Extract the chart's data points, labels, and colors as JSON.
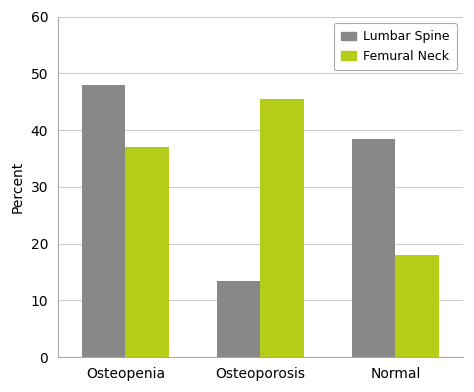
{
  "categories": [
    "Osteopenia",
    "Osteoporosis",
    "Normal"
  ],
  "lumbar_spine": [
    48,
    13.5,
    38.5
  ],
  "femural_neck": [
    37,
    45.5,
    18
  ],
  "lumbar_color": "#888888",
  "femural_color": "#b5cc18",
  "ylabel": "Percent",
  "ylim": [
    0,
    60
  ],
  "yticks": [
    0,
    10,
    20,
    30,
    40,
    50,
    60
  ],
  "legend_lumbar": "Lumbar Spine",
  "legend_femural": "Femural Neck",
  "bar_width": 0.32,
  "background_color": "#ffffff",
  "grid_color": "#cccccc",
  "spine_color": "#aaaaaa",
  "tick_fontsize": 10,
  "ylabel_fontsize": 10,
  "xlabel_fontsize": 10
}
